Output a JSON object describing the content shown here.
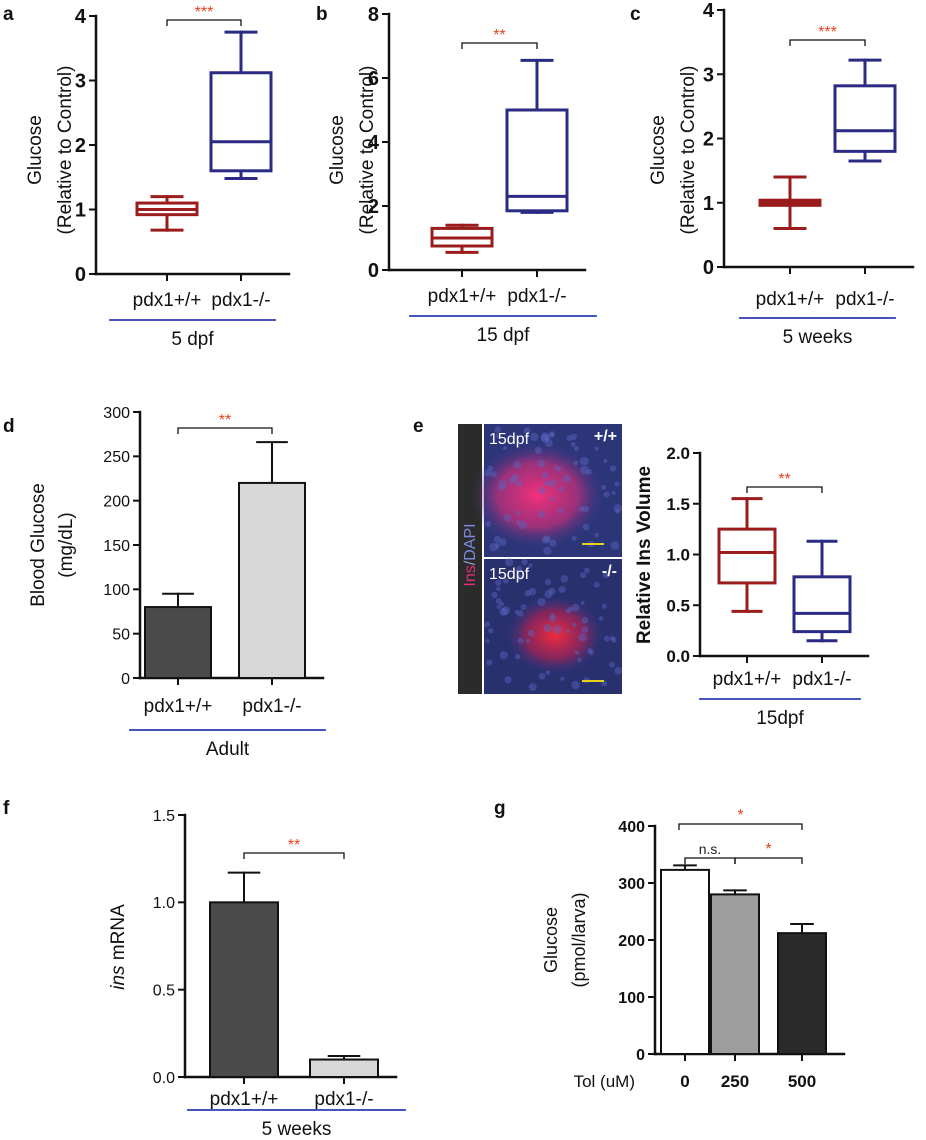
{
  "colors": {
    "wt": "#9b1c1c",
    "ko": "#2b2b86",
    "sig": "#e8441c",
    "underline": "#2f3bb0",
    "bar_dark": "#4a4a4a",
    "bar_light": "#d8d8d8",
    "bar_mid": "#9d9d9d",
    "bar_darkest": "#2a2a2a"
  },
  "chart_data": [
    {
      "panel": "a",
      "type": "box",
      "ylabel_line1": "Glucose",
      "ylabel_line2": "(Relative to Control)",
      "categories": [
        "pdx1+/+",
        "pdx1-/-"
      ],
      "group_label": "5 dpf",
      "ylim": [
        0,
        4
      ],
      "yticks": [
        "0",
        "1",
        "2",
        "3",
        "4"
      ],
      "boxes": [
        {
          "min": 0.68,
          "q1": 0.92,
          "median": 1.0,
          "q3": 1.1,
          "max": 1.2
        },
        {
          "min": 1.48,
          "q1": 1.6,
          "median": 2.05,
          "q3": 3.12,
          "max": 3.75
        }
      ],
      "significance": "***"
    },
    {
      "panel": "b",
      "type": "box",
      "ylabel_line1": "Glucose",
      "ylabel_line2": "(Relative to Control)",
      "categories": [
        "pdx1+/+",
        "pdx1-/-"
      ],
      "group_label": "15 dpf",
      "ylim": [
        0,
        8
      ],
      "yticks": [
        "0",
        "2",
        "4",
        "6",
        "8"
      ],
      "boxes": [
        {
          "min": 0.55,
          "q1": 0.75,
          "median": 1.0,
          "q3": 1.3,
          "max": 1.4
        },
        {
          "min": 1.8,
          "q1": 1.85,
          "median": 2.3,
          "q3": 5.0,
          "max": 6.55
        }
      ],
      "significance": "**"
    },
    {
      "panel": "c",
      "type": "box",
      "ylabel_line1": "Glucose",
      "ylabel_line2": "(Relative to Control)",
      "categories": [
        "pdx1+/+",
        "pdx1-/-"
      ],
      "group_label": "5 weeks",
      "ylim": [
        0,
        4
      ],
      "yticks": [
        "0",
        "1",
        "2",
        "3",
        "4"
      ],
      "boxes": [
        {
          "min": 0.6,
          "q1": 0.96,
          "median": 1.0,
          "q3": 1.04,
          "max": 1.4
        },
        {
          "min": 1.65,
          "q1": 1.8,
          "median": 2.12,
          "q3": 2.82,
          "max": 3.22
        }
      ],
      "significance": "***"
    },
    {
      "panel": "d",
      "type": "bar",
      "ylabel_line1": "Blood Glucose",
      "ylabel_line2": "(mg/dL)",
      "categories": [
        "pdx1+/+",
        "pdx1-/-"
      ],
      "group_label": "Adult",
      "ylim": [
        0,
        300
      ],
      "yticks": [
        "0",
        "50",
        "100",
        "150",
        "200",
        "250",
        "300"
      ],
      "values": [
        80,
        220
      ],
      "errors": [
        15,
        46
      ],
      "significance": "**"
    },
    {
      "panel": "e",
      "type": "box",
      "ylabel": "Relative Ins Volume",
      "categories": [
        "pdx1+/+",
        "pdx1-/-"
      ],
      "group_label": "15dpf",
      "ylim": [
        0,
        2.0
      ],
      "yticks": [
        "0.0",
        "0.5",
        "1.0",
        "1.5",
        "2.0"
      ],
      "boxes": [
        {
          "min": 0.44,
          "q1": 0.72,
          "median": 1.02,
          "q3": 1.25,
          "max": 1.55
        },
        {
          "min": 0.15,
          "q1": 0.24,
          "median": 0.42,
          "q3": 0.78,
          "max": 1.13
        }
      ],
      "significance": "**",
      "image_labels": {
        "stain_ins": "Ins",
        "stain_sep": "/",
        "stain_dapi": "DAPI",
        "top_stage": "15dpf",
        "top_genotype": "+/+",
        "bottom_stage": "15dpf",
        "bottom_genotype": "-/-"
      }
    },
    {
      "panel": "f",
      "type": "bar",
      "ylabel_italic": "ins",
      "ylabel_rest": " mRNA",
      "categories": [
        "pdx1+/+",
        "pdx1-/-"
      ],
      "group_label": "5 weeks",
      "ylim": [
        0,
        1.5
      ],
      "yticks": [
        "0.0",
        "0.5",
        "1.0",
        "1.5"
      ],
      "values": [
        1.0,
        0.1
      ],
      "errors": [
        0.17,
        0.02
      ],
      "significance": "**"
    },
    {
      "panel": "g",
      "type": "bar",
      "ylabel_line1": "Glucose",
      "ylabel_line2": "(pmol/larva)",
      "x_title": "Tol (uM)",
      "categories": [
        "0",
        "250",
        "500"
      ],
      "ylim": [
        0,
        400
      ],
      "yticks": [
        "0",
        "100",
        "200",
        "300",
        "400"
      ],
      "values": [
        323,
        280,
        212
      ],
      "errors": [
        8,
        7,
        16
      ],
      "comparisons": [
        {
          "from": 0,
          "to": 2,
          "label": "*"
        },
        {
          "from": 0,
          "to": 1,
          "label": "n.s."
        },
        {
          "from": 1,
          "to": 2,
          "label": "*"
        }
      ]
    }
  ]
}
